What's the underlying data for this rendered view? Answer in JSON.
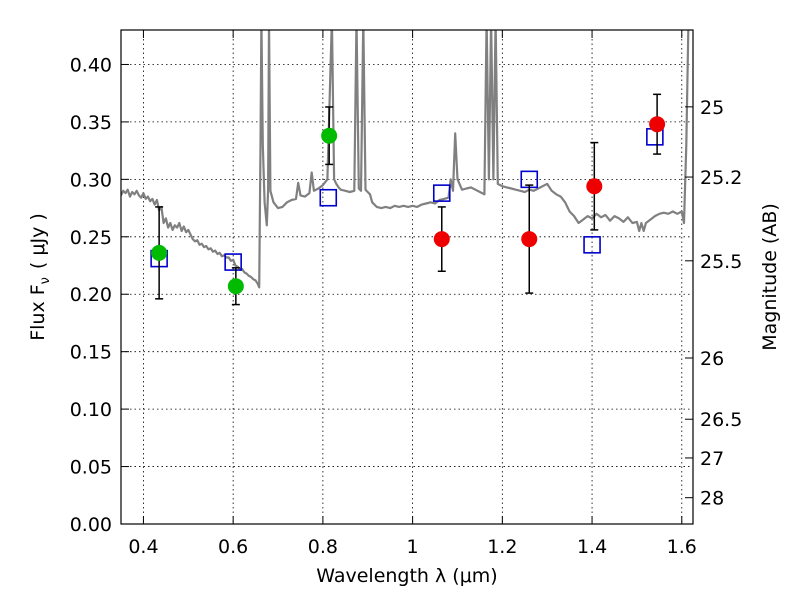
{
  "chart_data": {
    "type": "scatter",
    "xlabel": "Wavelength  λ (μm)",
    "ylabel": "Flux  F",
    "ylabel_sub": "ν",
    "ylabel_unit": "( μJy )",
    "y2label": "Magnitude (AB)",
    "xlim": [
      0.35,
      1.625
    ],
    "ylim": [
      0.0,
      0.43
    ],
    "grid": true,
    "x_ticks": [
      0.4,
      0.6,
      0.8,
      1.0,
      1.2,
      1.4,
      1.6
    ],
    "x_tick_labels": [
      "0.4",
      "0.6",
      "0.8",
      "1",
      "1.2",
      "1.4",
      "1.6"
    ],
    "y_ticks": [
      0.0,
      0.05,
      0.1,
      0.15,
      0.2,
      0.25,
      0.3,
      0.35,
      0.4
    ],
    "y_tick_labels": [
      "0.00",
      "0.05",
      "0.10",
      "0.15",
      "0.20",
      "0.25",
      "0.30",
      "0.35",
      "0.40"
    ],
    "y2_ticks": [
      {
        "label": "25",
        "flux": 0.3631
      },
      {
        "label": "25.2",
        "flux": 0.302
      },
      {
        "label": "25.5",
        "flux": 0.2291
      },
      {
        "label": "26",
        "flux": 0.1445
      },
      {
        "label": "26.5",
        "flux": 0.0912
      },
      {
        "label": "27",
        "flux": 0.0575
      },
      {
        "label": "28",
        "flux": 0.0229
      }
    ],
    "series": [
      {
        "kind": "spectrum",
        "color": "#808080",
        "points": [
          [
            0.35,
            0.286
          ],
          [
            0.355,
            0.29
          ],
          [
            0.36,
            0.288
          ],
          [
            0.365,
            0.291
          ],
          [
            0.37,
            0.285
          ],
          [
            0.375,
            0.289
          ],
          [
            0.38,
            0.287
          ],
          [
            0.385,
            0.29
          ],
          [
            0.39,
            0.286
          ],
          [
            0.395,
            0.284
          ],
          [
            0.4,
            0.288
          ],
          [
            0.405,
            0.283
          ],
          [
            0.41,
            0.285
          ],
          [
            0.415,
            0.281
          ],
          [
            0.42,
            0.283
          ],
          [
            0.425,
            0.278
          ],
          [
            0.43,
            0.282
          ],
          [
            0.435,
            0.273
          ],
          [
            0.44,
            0.276
          ],
          [
            0.445,
            0.262
          ],
          [
            0.45,
            0.266
          ],
          [
            0.455,
            0.258
          ],
          [
            0.46,
            0.262
          ],
          [
            0.465,
            0.256
          ],
          [
            0.47,
            0.26
          ],
          [
            0.475,
            0.258
          ],
          [
            0.48,
            0.262
          ],
          [
            0.485,
            0.255
          ],
          [
            0.49,
            0.259
          ],
          [
            0.495,
            0.254
          ],
          [
            0.5,
            0.256
          ],
          [
            0.505,
            0.252
          ],
          [
            0.51,
            0.248
          ],
          [
            0.515,
            0.246
          ],
          [
            0.52,
            0.247
          ],
          [
            0.525,
            0.243
          ],
          [
            0.53,
            0.244
          ],
          [
            0.535,
            0.241
          ],
          [
            0.54,
            0.242
          ],
          [
            0.545,
            0.239
          ],
          [
            0.55,
            0.24
          ],
          [
            0.555,
            0.237
          ],
          [
            0.56,
            0.238
          ],
          [
            0.565,
            0.235
          ],
          [
            0.57,
            0.236
          ],
          [
            0.575,
            0.233
          ],
          [
            0.58,
            0.234
          ],
          [
            0.585,
            0.232
          ],
          [
            0.59,
            0.232
          ],
          [
            0.595,
            0.229
          ],
          [
            0.6,
            0.23
          ],
          [
            0.605,
            0.225
          ],
          [
            0.61,
            0.224
          ],
          [
            0.615,
            0.222
          ],
          [
            0.62,
            0.222
          ],
          [
            0.625,
            0.219
          ],
          [
            0.63,
            0.218
          ],
          [
            0.635,
            0.216
          ],
          [
            0.64,
            0.215
          ],
          [
            0.645,
            0.213
          ],
          [
            0.65,
            0.212
          ],
          [
            0.655,
            0.209
          ],
          [
            0.658,
            0.206
          ],
          [
            0.661,
            0.33
          ],
          [
            0.663,
            0.44
          ],
          [
            0.666,
            0.33
          ],
          [
            0.67,
            0.28
          ],
          [
            0.675,
            0.26
          ],
          [
            0.678,
            0.29
          ],
          [
            0.68,
            0.44
          ],
          [
            0.683,
            0.29
          ],
          [
            0.69,
            0.28
          ],
          [
            0.7,
            0.275
          ],
          [
            0.71,
            0.276
          ],
          [
            0.72,
            0.28
          ],
          [
            0.73,
            0.282
          ],
          [
            0.74,
            0.283
          ],
          [
            0.745,
            0.297
          ],
          [
            0.75,
            0.286
          ],
          [
            0.76,
            0.285
          ],
          [
            0.77,
            0.288
          ],
          [
            0.775,
            0.306
          ],
          [
            0.78,
            0.29
          ],
          [
            0.79,
            0.292
          ],
          [
            0.8,
            0.295
          ],
          [
            0.81,
            0.3
          ],
          [
            0.82,
            0.44
          ],
          [
            0.825,
            0.3
          ],
          [
            0.83,
            0.296
          ],
          [
            0.835,
            0.293
          ],
          [
            0.84,
            0.291
          ],
          [
            0.85,
            0.29
          ],
          [
            0.86,
            0.289
          ],
          [
            0.87,
            0.29
          ],
          [
            0.875,
            0.44
          ],
          [
            0.88,
            0.292
          ],
          [
            0.885,
            0.29
          ],
          [
            0.89,
            0.44
          ],
          [
            0.895,
            0.291
          ],
          [
            0.9,
            0.289
          ],
          [
            0.905,
            0.287
          ],
          [
            0.91,
            0.28
          ],
          [
            0.92,
            0.276
          ],
          [
            0.93,
            0.275
          ],
          [
            0.94,
            0.276
          ],
          [
            0.95,
            0.275
          ],
          [
            0.96,
            0.277
          ],
          [
            0.97,
            0.276
          ],
          [
            0.98,
            0.277
          ],
          [
            0.99,
            0.276
          ],
          [
            1.0,
            0.277
          ],
          [
            1.01,
            0.276
          ],
          [
            1.02,
            0.278
          ],
          [
            1.03,
            0.279
          ],
          [
            1.04,
            0.28
          ],
          [
            1.05,
            0.279
          ],
          [
            1.06,
            0.282
          ],
          [
            1.07,
            0.283
          ],
          [
            1.08,
            0.284
          ],
          [
            1.085,
            0.3
          ],
          [
            1.09,
            0.29
          ],
          [
            1.095,
            0.34
          ],
          [
            1.1,
            0.3
          ],
          [
            1.11,
            0.291
          ],
          [
            1.12,
            0.292
          ],
          [
            1.13,
            0.293
          ],
          [
            1.14,
            0.291
          ],
          [
            1.15,
            0.289
          ],
          [
            1.16,
            0.287
          ],
          [
            1.165,
            0.44
          ],
          [
            1.17,
            0.3
          ],
          [
            1.175,
            0.44
          ],
          [
            1.18,
            0.3
          ],
          [
            1.185,
            0.44
          ],
          [
            1.19,
            0.296
          ],
          [
            1.2,
            0.294
          ],
          [
            1.21,
            0.293
          ],
          [
            1.22,
            0.292
          ],
          [
            1.23,
            0.291
          ],
          [
            1.24,
            0.29
          ],
          [
            1.25,
            0.289
          ],
          [
            1.26,
            0.291
          ],
          [
            1.27,
            0.29
          ],
          [
            1.28,
            0.292
          ],
          [
            1.29,
            0.294
          ],
          [
            1.3,
            0.296
          ],
          [
            1.31,
            0.29
          ],
          [
            1.32,
            0.287
          ],
          [
            1.33,
            0.285
          ],
          [
            1.34,
            0.28
          ],
          [
            1.35,
            0.272
          ],
          [
            1.36,
            0.268
          ],
          [
            1.37,
            0.262
          ],
          [
            1.38,
            0.265
          ],
          [
            1.39,
            0.268
          ],
          [
            1.4,
            0.266
          ],
          [
            1.41,
            0.27
          ],
          [
            1.42,
            0.267
          ],
          [
            1.43,
            0.269
          ],
          [
            1.44,
            0.264
          ],
          [
            1.45,
            0.268
          ],
          [
            1.46,
            0.266
          ],
          [
            1.47,
            0.263
          ],
          [
            1.48,
            0.267
          ],
          [
            1.49,
            0.262
          ],
          [
            1.5,
            0.263
          ],
          [
            1.505,
            0.255
          ],
          [
            1.51,
            0.262
          ],
          [
            1.515,
            0.255
          ],
          [
            1.52,
            0.262
          ],
          [
            1.53,
            0.265
          ],
          [
            1.54,
            0.268
          ],
          [
            1.55,
            0.27
          ],
          [
            1.56,
            0.271
          ],
          [
            1.57,
            0.27
          ],
          [
            1.58,
            0.272
          ],
          [
            1.59,
            0.27
          ],
          [
            1.6,
            0.272
          ],
          [
            1.605,
            0.262
          ],
          [
            1.61,
            0.33
          ],
          [
            1.615,
            0.44
          ],
          [
            1.62,
            0.44
          ],
          [
            1.625,
            0.44
          ]
        ]
      },
      {
        "kind": "model-photometry",
        "marker": "open-square",
        "color": "#0000cc",
        "points": [
          {
            "x": 0.435,
            "y": 0.231
          },
          {
            "x": 0.6,
            "y": 0.228
          },
          {
            "x": 0.812,
            "y": 0.284
          },
          {
            "x": 1.065,
            "y": 0.288
          },
          {
            "x": 1.26,
            "y": 0.3
          },
          {
            "x": 1.4,
            "y": 0.243
          },
          {
            "x": 1.54,
            "y": 0.337
          }
        ]
      },
      {
        "kind": "observed-photometry",
        "marker": "filled-circle",
        "color": "#00bb00",
        "points": [
          {
            "x": 0.435,
            "y": 0.236,
            "err": 0.04
          },
          {
            "x": 0.606,
            "y": 0.207,
            "err": 0.016
          },
          {
            "x": 0.814,
            "y": 0.338,
            "err": 0.025
          }
        ]
      },
      {
        "kind": "observed-photometry",
        "marker": "filled-circle",
        "color": "#ee0000",
        "points": [
          {
            "x": 1.065,
            "y": 0.248,
            "err": 0.028
          },
          {
            "x": 1.26,
            "y": 0.248,
            "err": 0.047
          },
          {
            "x": 1.405,
            "y": 0.294,
            "err": 0.038
          },
          {
            "x": 1.545,
            "y": 0.348,
            "err": 0.026
          }
        ]
      }
    ]
  }
}
